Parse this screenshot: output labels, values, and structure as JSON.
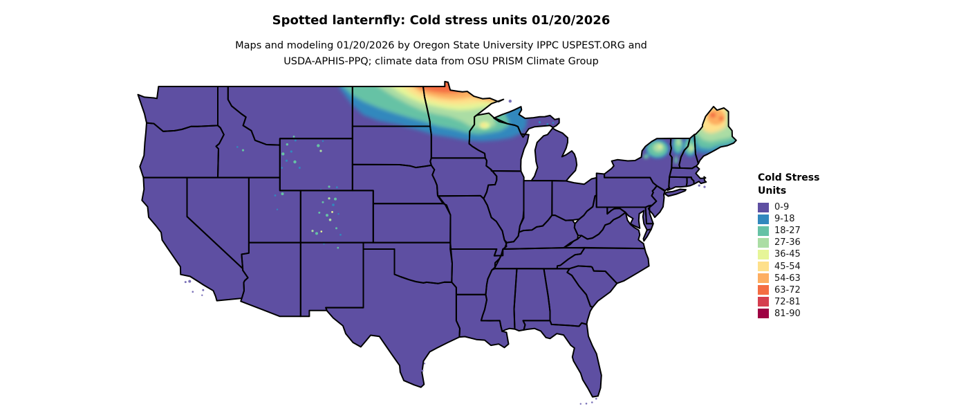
{
  "title": "Spotted lanternfly: Cold stress units 01/20/2026",
  "subtitle": {
    "line1": "Maps and modeling 01/20/2026 by Oregon State University IPPC USPEST.ORG and",
    "line2": "USDA-APHIS-PPQ; climate data from OSU PRISM Climate Group"
  },
  "legend": {
    "title_line1": "Cold Stress",
    "title_line2": "Units",
    "items": [
      {
        "label": "0-9",
        "color": "#5e4fa2"
      },
      {
        "label": "9-18",
        "color": "#3288bd"
      },
      {
        "label": "18-27",
        "color": "#66c2a5"
      },
      {
        "label": "27-36",
        "color": "#abdda4"
      },
      {
        "label": "36-45",
        "color": "#e6f598"
      },
      {
        "label": "45-54",
        "color": "#fee08b"
      },
      {
        "label": "54-63",
        "color": "#fdae61"
      },
      {
        "label": "63-72",
        "color": "#f46d43"
      },
      {
        "label": "72-81",
        "color": "#d53e4f"
      },
      {
        "label": "81-90",
        "color": "#9e0142"
      }
    ]
  },
  "map": {
    "base_fill": "#5e4fa2",
    "state_border_color": "#000000",
    "background_color": "#ffffff",
    "island_fill": "#7b72b8"
  }
}
